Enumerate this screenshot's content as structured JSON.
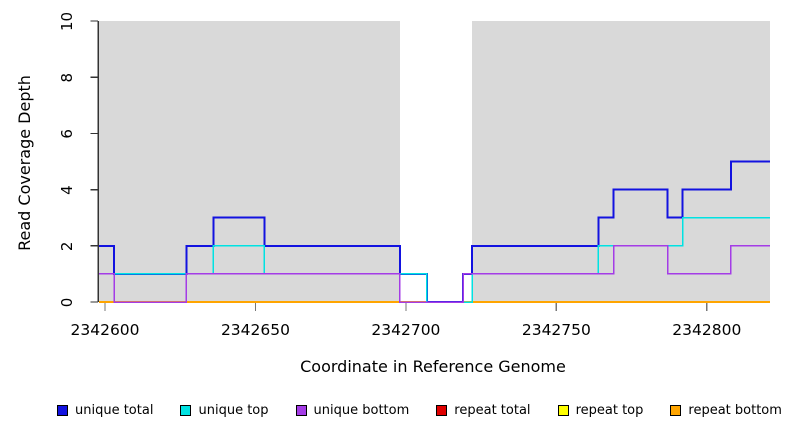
{
  "chart_data": {
    "type": "line",
    "subtype": "step",
    "title": "",
    "xlabel": "Coordinate in Reference Genome",
    "ylabel": "Read Coverage Depth",
    "xlim": [
      2342598,
      2342821
    ],
    "ylim": [
      0,
      10
    ],
    "x_ticks": [
      2342600,
      2342650,
      2342700,
      2342750,
      2342800
    ],
    "y_ticks": [
      0,
      2,
      4,
      6,
      8,
      10
    ],
    "grid": false,
    "plot_bg": "#d9d9d9",
    "page_bg": "#ffffff",
    "axis_color": "#333333",
    "uncovered_band": {
      "from": 2342698,
      "to": 2342722,
      "color": "#ffffff"
    },
    "legend_position": "bottom",
    "series": [
      {
        "name": "unique total",
        "color": "#1212e0",
        "width": 2,
        "steps": [
          [
            2342598,
            2
          ],
          [
            2342603,
            1
          ],
          [
            2342627,
            2
          ],
          [
            2342636,
            3
          ],
          [
            2342653,
            2
          ],
          [
            2342698,
            1
          ],
          [
            2342707,
            0
          ],
          [
            2342719,
            1
          ],
          [
            2342722,
            2
          ],
          [
            2342764,
            3
          ],
          [
            2342769,
            4
          ],
          [
            2342787,
            3
          ],
          [
            2342792,
            4
          ],
          [
            2342808,
            5
          ],
          [
            2342821,
            5
          ]
        ]
      },
      {
        "name": "unique top",
        "color": "#00e2e2",
        "width": 1.5,
        "steps": [
          [
            2342598,
            1
          ],
          [
            2342636,
            2
          ],
          [
            2342653,
            1
          ],
          [
            2342707,
            0
          ],
          [
            2342722,
            1
          ],
          [
            2342764,
            2
          ],
          [
            2342792,
            3
          ],
          [
            2342821,
            3
          ]
        ]
      },
      {
        "name": "unique bottom",
        "color": "#a43ce6",
        "width": 1.5,
        "steps": [
          [
            2342598,
            1
          ],
          [
            2342603,
            0
          ],
          [
            2342627,
            1
          ],
          [
            2342698,
            0
          ],
          [
            2342719,
            1
          ],
          [
            2342769,
            2
          ],
          [
            2342787,
            1
          ],
          [
            2342808,
            2
          ],
          [
            2342821,
            2
          ]
        ]
      },
      {
        "name": "repeat total",
        "color": "#e00000",
        "width": 1.5,
        "steps": [
          [
            2342598,
            0
          ],
          [
            2342821,
            0
          ]
        ]
      },
      {
        "name": "repeat top",
        "color": "#ffff00",
        "width": 1.5,
        "steps": [
          [
            2342598,
            0
          ],
          [
            2342821,
            0
          ]
        ]
      },
      {
        "name": "repeat bottom",
        "color": "#ffa500",
        "width": 2,
        "steps": [
          [
            2342598,
            0
          ],
          [
            2342821,
            0
          ]
        ]
      }
    ],
    "draw_order": [
      3,
      4,
      5,
      0,
      1,
      2
    ]
  }
}
